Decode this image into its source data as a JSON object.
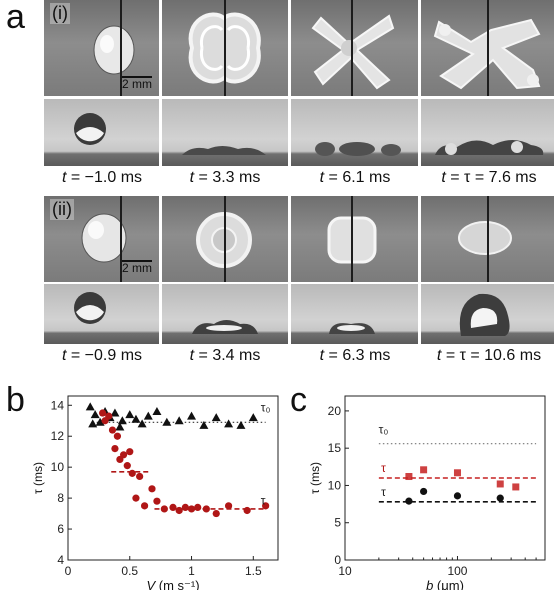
{
  "panel_labels": {
    "a": "a",
    "b": "b",
    "c": "c"
  },
  "figure_a": {
    "rows": [
      {
        "label": "(i)",
        "scale_bar": "2 mm",
        "times": [
          "= −1.0 ms",
          "= 3.3 ms",
          "= 6.1 ms",
          "= τ = 7.6 ms"
        ]
      },
      {
        "label": "(ii)",
        "scale_bar": "2 mm",
        "times": [
          "= −0.9 ms",
          "= 3.4 ms",
          "= 6.3 ms",
          "= τ = 10.6 ms"
        ]
      }
    ],
    "time_symbol": "t"
  },
  "chart_data": [
    {
      "panel": "b",
      "type": "scatter",
      "xlabel": "V (m s⁻¹)",
      "ylabel": "τ (ms)",
      "xlim": [
        0,
        1.7
      ],
      "ylim": [
        4,
        14.6
      ],
      "xticks": [
        0,
        0.5,
        1.0,
        1.5
      ],
      "xtick_labels": [
        "0",
        "0.5",
        "1",
        "1.5"
      ],
      "yticks": [
        4,
        6,
        8,
        10,
        12,
        14
      ],
      "grid": false,
      "annotations": [
        {
          "text": "τ₀",
          "x": 1.6,
          "y": 13.6
        },
        {
          "text": "τ",
          "x": 1.58,
          "y": 7.6
        }
      ],
      "series": [
        {
          "marker": "triangle",
          "color": "#111111",
          "x": [
            0.18,
            0.22,
            0.26,
            0.3,
            0.34,
            0.38,
            0.44,
            0.5,
            0.55,
            0.6,
            0.65,
            0.72,
            0.8,
            0.9,
            1.0,
            1.1,
            1.2,
            1.3,
            1.4,
            1.5,
            0.2,
            0.42
          ],
          "y": [
            13.9,
            13.4,
            12.9,
            13.6,
            13.2,
            13.5,
            13.0,
            13.4,
            13.1,
            12.8,
            13.3,
            13.6,
            12.9,
            13.0,
            13.3,
            12.7,
            13.2,
            12.8,
            12.7,
            13.2,
            12.8,
            12.6
          ]
        },
        {
          "marker": "circle",
          "color": "#b01616",
          "x": [
            0.28,
            0.3,
            0.33,
            0.36,
            0.38,
            0.4,
            0.42,
            0.45,
            0.48,
            0.5,
            0.52,
            0.55,
            0.58,
            0.62,
            0.68,
            0.72,
            0.78,
            0.85,
            0.9,
            0.95,
            1.0,
            1.05,
            1.12,
            1.2,
            1.3,
            1.45,
            1.6
          ],
          "y": [
            13.5,
            13.0,
            13.3,
            12.4,
            11.2,
            12.0,
            10.5,
            10.8,
            10.1,
            11.0,
            9.6,
            8.0,
            9.4,
            7.5,
            8.6,
            7.8,
            7.3,
            7.4,
            7.2,
            7.4,
            7.3,
            7.4,
            7.3,
            7.0,
            7.5,
            7.2,
            7.5
          ]
        }
      ],
      "reference_lines": [
        {
          "y": 12.9,
          "x_range": [
            0.2,
            1.6
          ],
          "style": "dotted",
          "color": "#333333"
        },
        {
          "y": 9.7,
          "x_range": [
            0.35,
            0.65
          ],
          "style": "dashed",
          "color": "#b01616"
        },
        {
          "y": 7.3,
          "x_range": [
            0.7,
            1.6
          ],
          "style": "dashed",
          "color": "#b01616"
        }
      ]
    },
    {
      "panel": "c",
      "type": "scatter",
      "xlabel": "b (μm)",
      "ylabel": "τ (ms)",
      "xscale": "log",
      "xlim": [
        10,
        600
      ],
      "ylim": [
        0,
        22
      ],
      "xticks": [
        10,
        100
      ],
      "xtick_labels": [
        "10",
        "100"
      ],
      "yticks": [
        0,
        5,
        10,
        15,
        20
      ],
      "grid": false,
      "annotations": [
        {
          "text": "τ₀",
          "x": 22,
          "y": 17
        },
        {
          "text": "τ",
          "x": 22,
          "y": 11.8,
          "color": "#b01616"
        },
        {
          "text": "τ",
          "x": 22,
          "y": 8.6
        }
      ],
      "series": [
        {
          "marker": "square",
          "color": "#c62020",
          "x": [
            37,
            50,
            100,
            240,
            330
          ],
          "y": [
            11.2,
            12.1,
            11.7,
            10.2,
            9.8
          ]
        },
        {
          "marker": "circle",
          "color": "#111111",
          "x": [
            37,
            50,
            100,
            240
          ],
          "y": [
            7.9,
            9.2,
            8.6,
            8.3
          ]
        }
      ],
      "reference_lines": [
        {
          "y": 15.6,
          "x_range": [
            20,
            500
          ],
          "style": "dotted",
          "color": "#777777"
        },
        {
          "y": 11.0,
          "x_range": [
            20,
            500
          ],
          "style": "dashed",
          "color": "#c62020"
        },
        {
          "y": 7.8,
          "x_range": [
            20,
            500
          ],
          "style": "dashed",
          "color": "#111111"
        }
      ]
    }
  ]
}
